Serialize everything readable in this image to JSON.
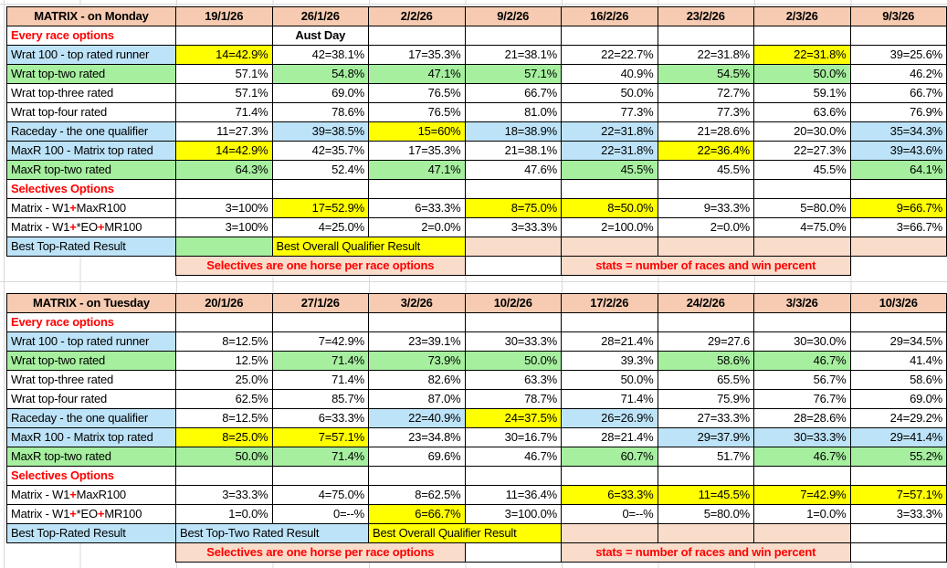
{
  "colors": {
    "header_bg": "#F7CBB1",
    "band_bg": "#FADCCB",
    "yellow": "#FFFF00",
    "green": "#A6EF9F",
    "blue": "#BDE3F8",
    "red": "#FF0000",
    "grid": "#D9D9D9",
    "border": "#000000"
  },
  "tables": [
    {
      "id": "monday",
      "title": "MATRIX - on Monday",
      "dates": [
        "19/1/26",
        "26/1/26",
        "2/2/26",
        "9/2/26",
        "16/2/26",
        "23/2/26",
        "2/3/26",
        "9/3/26"
      ],
      "rows": [
        {
          "label": {
            "t": "Every race options",
            "red": 1,
            "bold": 1
          },
          "cells": [
            {},
            {
              "t": "Aust Day",
              "bold": 1,
              "ctr": 1
            },
            {},
            {},
            {},
            {},
            {},
            {}
          ]
        },
        {
          "label": {
            "t": "Wrat 100 - top rated runner",
            "bg": "b"
          },
          "cells": [
            {
              "t": "14=42.9%",
              "bg": "y"
            },
            "42=38.1%",
            "17=35.3%",
            "21=38.1%",
            "22=22.7%",
            "22=31.8%",
            {
              "t": "22=31.8%",
              "bg": "y"
            },
            "39=25.6%"
          ]
        },
        {
          "label": {
            "t": "Wrat top-two rated",
            "bg": "g"
          },
          "cells": [
            "57.1%",
            {
              "t": "54.8%",
              "bg": "g"
            },
            {
              "t": "47.1%",
              "bg": "g"
            },
            {
              "t": "57.1%",
              "bg": "g"
            },
            "40.9%",
            {
              "t": "54.5%",
              "bg": "g"
            },
            {
              "t": "50.0%",
              "bg": "g"
            },
            "46.2%"
          ]
        },
        {
          "label": {
            "t": "Wrat top-three rated"
          },
          "cells": [
            "57.1%",
            "69.0%",
            "76.5%",
            "66.7%",
            "50.0%",
            "72.7%",
            "59.1%",
            "66.7%"
          ]
        },
        {
          "label": {
            "t": "Wrat top-four rated"
          },
          "cells": [
            "71.4%",
            "78.6%",
            "76.5%",
            "81.0%",
            "77.3%",
            "77.3%",
            "63.6%",
            "76.9%"
          ]
        },
        {
          "label": {
            "t": "Raceday - the one qualifier",
            "bg": "b"
          },
          "cells": [
            "11=27.3%",
            {
              "t": "39=38.5%",
              "bg": "b"
            },
            {
              "t": "15=60%",
              "bg": "y"
            },
            {
              "t": "18=38.9%",
              "bg": "b"
            },
            {
              "t": "22=31.8%",
              "bg": "b"
            },
            "21=28.6%",
            "20=30.0%",
            {
              "t": "35=34.3%",
              "bg": "b"
            }
          ]
        },
        {
          "label": {
            "t": "MaxR 100 - Matrix top rated",
            "bg": "b"
          },
          "cells": [
            {
              "t": "14=42.9%",
              "bg": "y"
            },
            "42=35.7%",
            "17=35.3%",
            "21=38.1%",
            {
              "t": "22=31.8%",
              "bg": "b"
            },
            {
              "t": "22=36.4%",
              "bg": "y"
            },
            "22=27.3%",
            {
              "t": "39=43.6%",
              "bg": "b"
            }
          ]
        },
        {
          "label": {
            "t": "MaxR top-two rated",
            "bg": "g"
          },
          "cells": [
            {
              "t": "64.3%",
              "bg": "g"
            },
            "52.4%",
            {
              "t": "47.1%",
              "bg": "g"
            },
            "47.6%",
            {
              "t": "45.5%",
              "bg": "g"
            },
            "45.5%",
            "45.5%",
            {
              "t": "64.1%",
              "bg": "g"
            }
          ]
        },
        {
          "label": {
            "t": "Selectives Options",
            "red": 1,
            "bold": 1
          },
          "cells": [
            {},
            {},
            {},
            {},
            {},
            {},
            {},
            {}
          ]
        },
        {
          "label": {
            "parts": [
              {
                "t": "Matrix - W1"
              },
              {
                "t": "+",
                "red": 1
              },
              {
                "t": "MaxR100"
              }
            ]
          },
          "cells": [
            "3=100%",
            {
              "t": "17=52.9%",
              "bg": "y"
            },
            "6=33.3%",
            {
              "t": "8=75.0%",
              "bg": "y"
            },
            {
              "t": "8=50.0%",
              "bg": "y"
            },
            "9=33.3%",
            "5=80.0%",
            {
              "t": "9=66.7%",
              "bg": "y"
            }
          ]
        },
        {
          "label": {
            "parts": [
              {
                "t": "Matrix - W1"
              },
              {
                "t": "+",
                "red": 1
              },
              {
                "t": "*EO"
              },
              {
                "t": "+",
                "red": 1
              },
              {
                "t": "MR100"
              }
            ]
          },
          "cells": [
            "3=100%",
            "4=25.0%",
            "2=0.0%",
            "3=33.3%",
            "2=100.0%",
            "2=0.0%",
            "4=75.0%",
            "3=66.7%"
          ]
        },
        {
          "label": {
            "t": "Best Top-Rated Result",
            "bg": "b"
          },
          "cells": [
            {
              "t": "",
              "bg": "g"
            },
            {
              "t": "Best Overall Qualifier Result",
              "bg": "y",
              "span": 2,
              "align": "left"
            },
            {
              "bg": "p"
            },
            {
              "bg": "p"
            },
            {
              "bg": "p"
            },
            {
              "bg": "p"
            },
            {
              "bg": "p"
            }
          ]
        },
        {
          "label": {
            "t": "",
            "bg": "n"
          },
          "cells": [
            {
              "t": "Selectives are one horse per race options",
              "bg": "p",
              "span": 3,
              "red": 1,
              "bold": 1,
              "ctr": 1
            },
            {
              "t": ""
            },
            {
              "t": "stats = number of races and win percent",
              "bg": "p",
              "span": 3,
              "red": 1,
              "bold": 1,
              "ctr": 1
            },
            {
              "bg": "n"
            }
          ]
        }
      ]
    },
    {
      "id": "tuesday",
      "title": "MATRIX - on Tuesday",
      "dates": [
        "20/1/26",
        "27/1/26",
        "3/2/26",
        "10/2/26",
        "17/2/26",
        "24/2/26",
        "3/3/26",
        "10/3/26"
      ],
      "rows": [
        {
          "label": {
            "t": "Every race options",
            "red": 1,
            "bold": 1
          },
          "cells": [
            {},
            {},
            {},
            {},
            {},
            {},
            {},
            {}
          ]
        },
        {
          "label": {
            "t": "Wrat 100 - top rated runner",
            "bg": "b"
          },
          "cells": [
            "8=12.5%",
            "7=42.9%",
            "23=39.1%",
            "30=33.3%",
            "28=21.4%",
            "29=27.6",
            "30=30.0%",
            "29=34.5%"
          ]
        },
        {
          "label": {
            "t": "Wrat top-two rated",
            "bg": "g"
          },
          "cells": [
            "12.5%",
            {
              "t": "71.4%",
              "bg": "g"
            },
            {
              "t": "73.9%",
              "bg": "g"
            },
            {
              "t": "50.0%",
              "bg": "g"
            },
            "39.3%",
            {
              "t": "58.6%",
              "bg": "g"
            },
            {
              "t": "46.7%",
              "bg": "g"
            },
            "41.4%"
          ]
        },
        {
          "label": {
            "t": "Wrat top-three rated"
          },
          "cells": [
            "25.0%",
            "71.4%",
            "82.6%",
            "63.3%",
            "50.0%",
            "65.5%",
            "56.7%",
            "58.6%"
          ]
        },
        {
          "label": {
            "t": "Wrat top-four rated"
          },
          "cells": [
            "62.5%",
            "85.7%",
            "87.0%",
            "78.7%",
            "71.4%",
            "75.9%",
            "76.7%",
            "69.0%"
          ]
        },
        {
          "label": {
            "t": "Raceday - the one qualifier",
            "bg": "b"
          },
          "cells": [
            "8=12.5%",
            "6=33.3%",
            {
              "t": "22=40.9%",
              "bg": "b"
            },
            {
              "t": "24=37.5%",
              "bg": "y"
            },
            {
              "t": "26=26.9%",
              "bg": "b"
            },
            "27=33.3%",
            "28=28.6%",
            "24=29.2%"
          ]
        },
        {
          "label": {
            "t": "MaxR 100 - Matrix top rated",
            "bg": "b"
          },
          "cells": [
            {
              "t": "8=25.0%",
              "bg": "y"
            },
            {
              "t": "7=57.1%",
              "bg": "y"
            },
            "23=34.8%",
            "30=16.7%",
            "28=21.4%",
            {
              "t": "29=37.9%",
              "bg": "b"
            },
            {
              "t": "30=33.3%",
              "bg": "b"
            },
            {
              "t": "29=41.4%",
              "bg": "b"
            }
          ]
        },
        {
          "label": {
            "t": "MaxR top-two rated",
            "bg": "g"
          },
          "cells": [
            {
              "t": "50.0%",
              "bg": "g"
            },
            {
              "t": "71.4%",
              "bg": "g"
            },
            "69.6%",
            "46.7%",
            {
              "t": "60.7%",
              "bg": "g"
            },
            "51.7%",
            {
              "t": "46.7%",
              "bg": "g"
            },
            {
              "t": "55.2%",
              "bg": "g"
            }
          ]
        },
        {
          "label": {
            "t": "Selectives Options",
            "red": 1,
            "bold": 1
          },
          "cells": [
            {},
            {},
            {},
            {},
            {},
            {},
            {},
            {}
          ]
        },
        {
          "label": {
            "parts": [
              {
                "t": "Matrix - W1"
              },
              {
                "t": "+",
                "red": 1
              },
              {
                "t": "MaxR100"
              }
            ]
          },
          "cells": [
            "3=33.3%",
            "4=75.0%",
            "8=62.5%",
            "11=36.4%",
            {
              "t": "6=33.3%",
              "bg": "y"
            },
            {
              "t": "11=45.5%",
              "bg": "y"
            },
            {
              "t": "7=42.9%",
              "bg": "y"
            },
            {
              "t": "7=57.1%",
              "bg": "y"
            }
          ]
        },
        {
          "label": {
            "parts": [
              {
                "t": "Matrix - W1"
              },
              {
                "t": "+",
                "red": 1
              },
              {
                "t": "*EO"
              },
              {
                "t": "+",
                "red": 1
              },
              {
                "t": "MR100"
              }
            ]
          },
          "cells": [
            "1=0.0%",
            "0=--%",
            {
              "t": "6=66.7%",
              "bg": "y"
            },
            "3=100.0%",
            "0=--%",
            "5=80.0%",
            "1=0.0%",
            "3=33.3%"
          ]
        },
        {
          "label": {
            "t": "Best Top-Rated Result",
            "bg": "b"
          },
          "cells": [
            {
              "t": "Best Top-Two Rated Result",
              "bg": "b",
              "span": 2,
              "align": "left"
            },
            {
              "t": "Best Overall Qualifier Result",
              "bg": "y",
              "span": 2,
              "align": "left"
            },
            {
              "bg": "p"
            },
            {
              "bg": "p"
            },
            {
              "bg": "p"
            },
            {
              "t": ""
            }
          ]
        },
        {
          "label": {
            "t": "",
            "bg": "n"
          },
          "cells": [
            {
              "t": "Selectives are one horse per race options",
              "bg": "p",
              "span": 3,
              "red": 1,
              "bold": 1,
              "ctr": 1
            },
            {
              "t": ""
            },
            {
              "t": "stats = number of races and win percent",
              "bg": "p",
              "span": 3,
              "red": 1,
              "bold": 1,
              "ctr": 1
            },
            {
              "t": ""
            }
          ]
        }
      ]
    }
  ]
}
